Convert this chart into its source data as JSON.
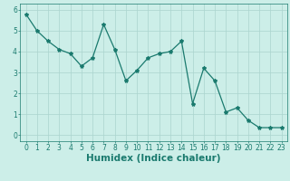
{
  "x": [
    0,
    1,
    2,
    3,
    4,
    5,
    6,
    7,
    8,
    9,
    10,
    11,
    12,
    13,
    14,
    15,
    16,
    17,
    18,
    19,
    20,
    21,
    22,
    23
  ],
  "y": [
    5.8,
    5.0,
    4.5,
    4.1,
    3.9,
    3.3,
    3.7,
    5.3,
    4.1,
    2.6,
    3.1,
    3.7,
    3.9,
    4.0,
    4.5,
    1.5,
    3.2,
    2.6,
    1.1,
    1.3,
    0.7,
    0.35,
    0.35,
    0.35
  ],
  "line_color": "#1a7a6e",
  "marker": "*",
  "marker_size": 3,
  "xlabel": "Humidex (Indice chaleur)",
  "xlim": [
    -0.5,
    23.5
  ],
  "ylim": [
    -0.3,
    6.3
  ],
  "yticks": [
    0,
    1,
    2,
    3,
    4,
    5,
    6
  ],
  "xticks": [
    0,
    1,
    2,
    3,
    4,
    5,
    6,
    7,
    8,
    9,
    10,
    11,
    12,
    13,
    14,
    15,
    16,
    17,
    18,
    19,
    20,
    21,
    22,
    23
  ],
  "bg_color": "#cceee8",
  "grid_color": "#aad4ce",
  "tick_label_fontsize": 5.5,
  "xlabel_fontsize": 7.5,
  "linewidth": 0.9
}
